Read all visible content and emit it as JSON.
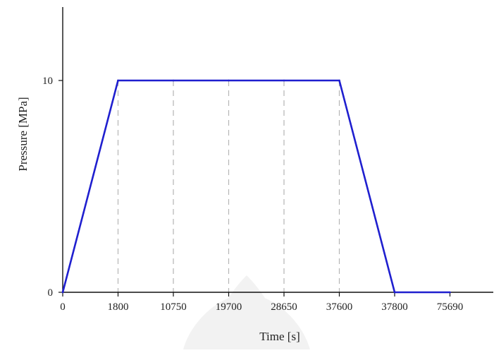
{
  "chart_data": {
    "type": "line",
    "title": "",
    "xlabel": "Time [s]",
    "ylabel": "Pressure [MPa]",
    "x_tick_labels": [
      "0",
      "1800",
      "10750",
      "19700",
      "28650",
      "37600",
      "37800",
      "75690"
    ],
    "y_tick_labels": [
      "0",
      "10"
    ],
    "ylim": [
      0,
      13.5
    ],
    "grid": "dashed vertical lines at plateau ticks",
    "series": [
      {
        "points": [
          {
            "x": "0",
            "y": 0
          },
          {
            "x": "1800",
            "y": 10
          },
          {
            "x": "10750",
            "y": 10
          },
          {
            "x": "19700",
            "y": 10
          },
          {
            "x": "28650",
            "y": 10
          },
          {
            "x": "37600",
            "y": 10
          },
          {
            "x": "37800",
            "y": 0
          },
          {
            "x": "75690",
            "y": 0
          }
        ],
        "color": "#1f1fcf"
      }
    ],
    "dashed_guides_at": [
      "1800",
      "10750",
      "19700",
      "28650",
      "37600"
    ]
  }
}
